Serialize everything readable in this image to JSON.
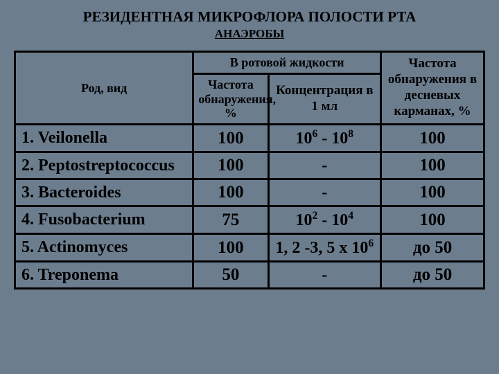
{
  "title": {
    "main": "РЕЗИДЕНТНАЯ МИКРОФЛОРА ПОЛОСТИ РТА",
    "sub": "АНАЭРОБЫ"
  },
  "headers": {
    "oralFluid": "В ротовой жидкости",
    "species": "Род, вид",
    "freq": "Частота обнаружения, %",
    "conc": "Концентрация в 1 мл",
    "gum": "Частота обнаружения в десневых карманах, %"
  },
  "rows": [
    {
      "species": "1. Veilonella",
      "freq": "100",
      "conc_html": "10<sup>6</sup>  - 10<sup>8</sup>",
      "gum": "100"
    },
    {
      "species": "2. Peptostreptococcus",
      "freq": "100",
      "conc_html": "-",
      "gum": "100"
    },
    {
      "species": "3. Bacteroides",
      "freq": "100",
      "conc_html": "-",
      "gum": "100"
    },
    {
      "species": "4. Fusobacterium",
      "freq": "75",
      "conc_html": "10<sup>2</sup>  - 10<sup>4</sup>",
      "gum": "100"
    },
    {
      "species": "5. Actinomyces",
      "freq": "100",
      "conc_html": "1, 2 -3, 5 х 10<sup>6</sup>",
      "gum": "до 50"
    },
    {
      "species": "6. Treponema",
      "freq": "50",
      "conc_html": "-",
      "gum": "до 50"
    }
  ],
  "style": {
    "background": "#6c7d8e",
    "border_color": "#000000",
    "text_color": "#000000",
    "font_family": "Times New Roman"
  }
}
